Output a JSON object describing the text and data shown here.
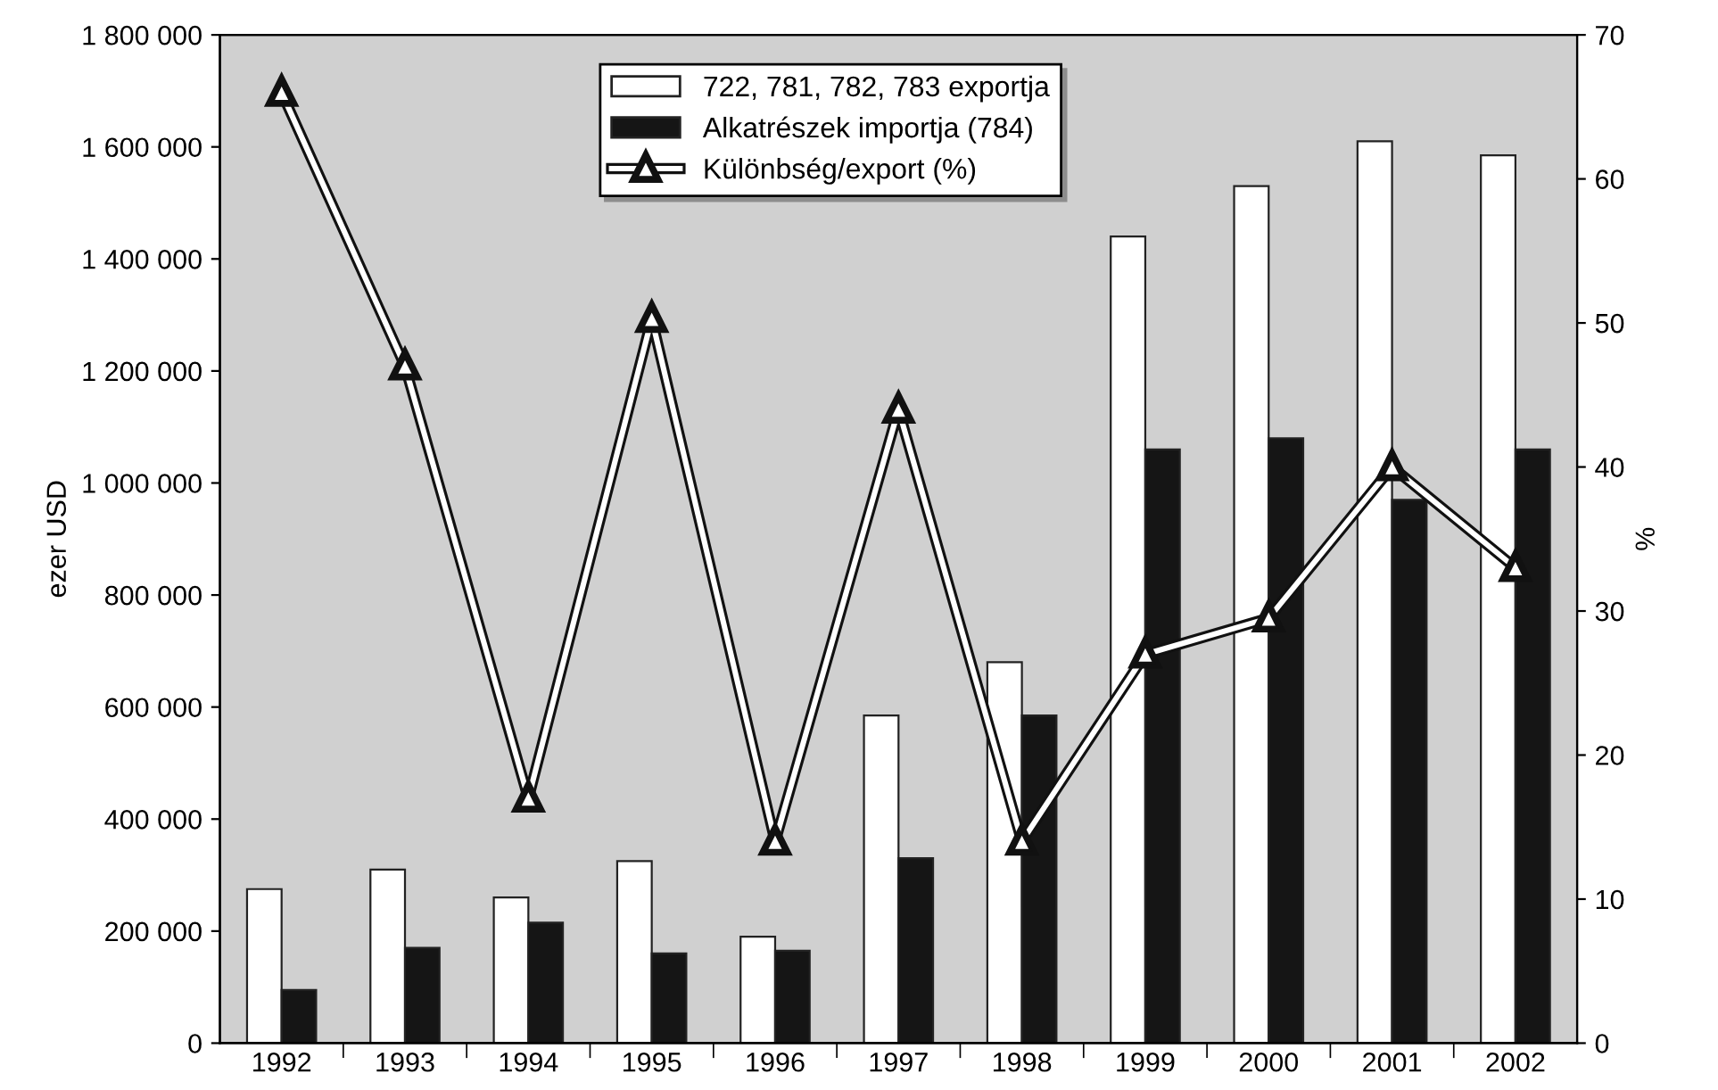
{
  "chart_data": {
    "type": "bar",
    "ylabel": "ezer USD",
    "y2label": "%",
    "categories": [
      "1992",
      "1993",
      "1994",
      "1995",
      "1996",
      "1997",
      "1998",
      "1999",
      "2000",
      "2001",
      "2002"
    ],
    "series": [
      {
        "name": "722, 781, 782, 783 exportja",
        "color": "#ffffff",
        "values": [
          275000,
          310000,
          260000,
          325000,
          190000,
          585000,
          680000,
          1440000,
          1530000,
          1610000,
          1585000
        ]
      },
      {
        "name": "Alkatrészek importja (784)",
        "color": "#151515",
        "values": [
          95000,
          170000,
          215000,
          160000,
          165000,
          330000,
          585000,
          1060000,
          1080000,
          970000,
          1060000
        ]
      },
      {
        "name": "Különbség/export (%)",
        "type": "line",
        "axis": "y2",
        "color": "#ffffff",
        "marker": "triangle",
        "values": [
          66,
          47,
          17,
          50.3,
          14,
          44,
          14,
          27,
          29.5,
          40,
          33
        ]
      }
    ],
    "ylim": [
      0,
      1800000
    ],
    "yticks": [
      {
        "value": 0,
        "label": "0"
      },
      {
        "value": 200000,
        "label": "200 000"
      },
      {
        "value": 400000,
        "label": "400 000"
      },
      {
        "value": 600000,
        "label": "600 000"
      },
      {
        "value": 800000,
        "label": "800 000"
      },
      {
        "value": 1000000,
        "label": "1 000 000"
      },
      {
        "value": 1200000,
        "label": "1 200 000"
      },
      {
        "value": 1400000,
        "label": "1 400 000"
      },
      {
        "value": 1600000,
        "label": "1 600 000"
      },
      {
        "value": 1800000,
        "label": "1 800 000"
      }
    ],
    "y2lim": [
      0,
      70
    ],
    "y2ticks": [
      0,
      10,
      20,
      30,
      40,
      50,
      60,
      70
    ],
    "legend": "top",
    "grid": false
  }
}
